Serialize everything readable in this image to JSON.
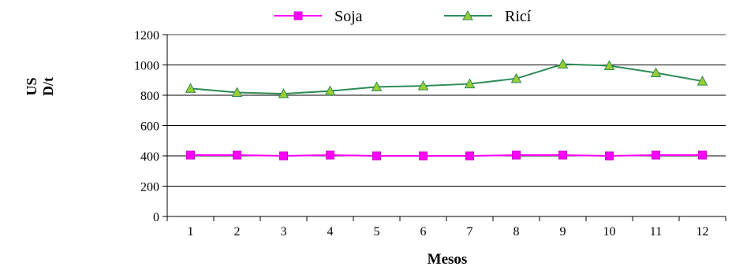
{
  "chart_data": {
    "type": "line",
    "title": "",
    "xlabel": "Mesos",
    "ylabel_lines": [
      "US",
      "D/t"
    ],
    "categories": [
      "1",
      "2",
      "3",
      "4",
      "5",
      "6",
      "7",
      "8",
      "9",
      "10",
      "11",
      "12"
    ],
    "ylim": [
      0,
      1200
    ],
    "yticks": [
      "0",
      "200",
      "400",
      "600",
      "800",
      "1000",
      "1200"
    ],
    "grid": "horizontal",
    "legend_position": "top",
    "series": [
      {
        "name": "Soja",
        "color": "#ff00ff",
        "marker": "square",
        "values": [
          405,
          405,
          400,
          405,
          400,
          400,
          400,
          405,
          405,
          400,
          405,
          405
        ]
      },
      {
        "name": "Ricí",
        "color": "#2e8b57",
        "marker_fill": "#9acd32",
        "marker": "triangle",
        "values": [
          845,
          818,
          810,
          828,
          855,
          862,
          875,
          910,
          1005,
          995,
          948,
          893
        ]
      }
    ]
  }
}
